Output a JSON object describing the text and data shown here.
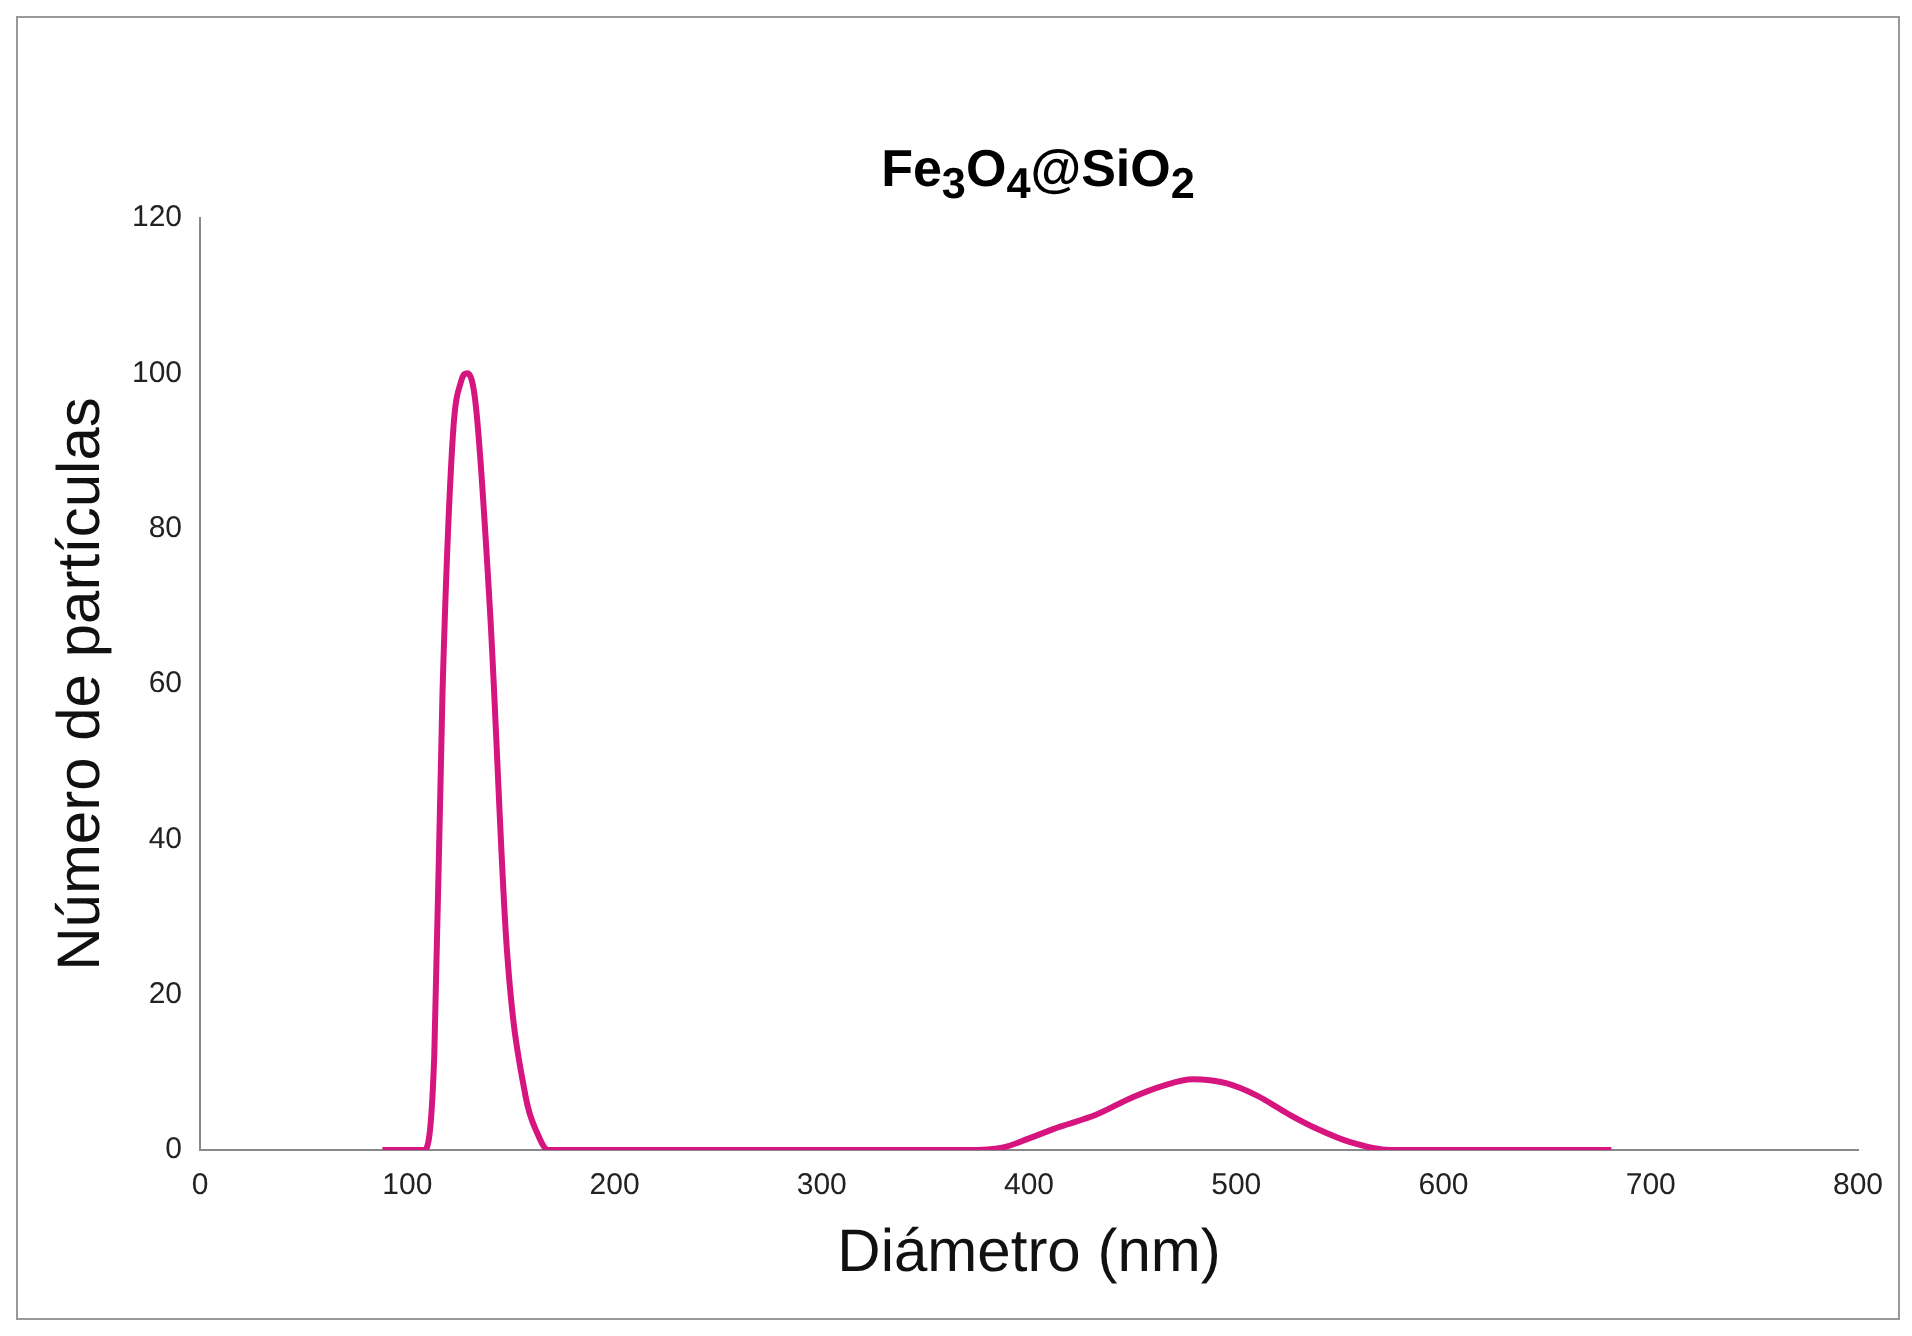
{
  "chart_data": {
    "type": "line",
    "title": "Fe$_{3}$O$_{4}$@SiO$_{2}$",
    "xlabel": "Diámetro (nm)",
    "ylabel": "Número de partículas",
    "xlim": [
      0,
      800
    ],
    "xticks": [
      0,
      100,
      200,
      300,
      400,
      500,
      600,
      700,
      800
    ],
    "ylim": [
      0,
      120
    ],
    "yticks": [
      0,
      20,
      40,
      60,
      80,
      100,
      120
    ],
    "grid": false,
    "legend": false,
    "marker": "none",
    "line_style": "solid",
    "series": [
      {
        "color": "#d6157f",
        "x": [
          88,
          100,
          108,
          113,
          117,
          122,
          126,
          129,
          133,
          140,
          148,
          157,
          163,
          168,
          172,
          180,
          250,
          330,
          370,
          387,
          400,
          415,
          432,
          450,
          465,
          479,
          495,
          510,
          526,
          540,
          555,
          574,
          600,
          640,
          681
        ],
        "values": [
          0,
          0,
          0,
          12,
          59,
          92,
          99,
          100,
          96,
          69,
          26,
          7,
          2,
          0,
          0,
          0,
          0,
          0,
          0,
          0.3,
          1.5,
          3,
          4.5,
          6.8,
          8.3,
          9.1,
          8.6,
          7,
          4.5,
          2.6,
          1,
          0,
          0,
          0,
          0
        ]
      }
    ]
  }
}
